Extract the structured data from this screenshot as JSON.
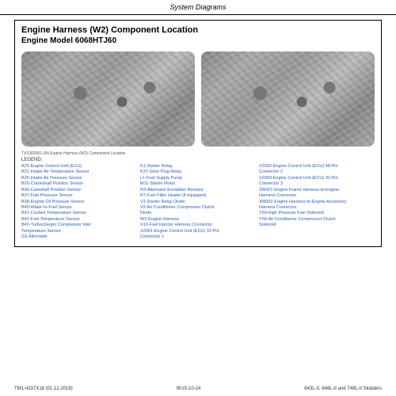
{
  "header": "System Diagrams",
  "title_main": "Engine Harness (W2) Component Location",
  "title_sub": "Engine Model 6068HTJ60",
  "img_caption": "TX1082081-UN Engine Harness (W2) Component Location",
  "legend_label": "LEGEND:",
  "legend": {
    "col1": [
      "A25-Engine Control Unit (ECU)",
      "B22-Intake Air Temperature Sensor",
      "B25-Intake Air Pressure Sensor",
      "B26-Crankshaft Position Sensor",
      "B36-Camshaft Position Sensor",
      "B37-Fuel Pressure Sensor",
      "B38-Engine Oil Pressure Sensor",
      "B40-Water-In-Fuel Sensor",
      "B41-Coolant Temperature Sensor",
      "B42-Fuel Temperature Sensor",
      "B43-Turbocharger Compressor Inlet",
      "Temperature Sensor",
      "G3-Alternator"
    ],
    "col2": [
      "K1-Starter Relay",
      "K37-Glow Plug Relay",
      "L1-Fuel Supply Pump",
      "M11-Starter Motor",
      "R3-Alternator Excitation Resistor",
      "R7-Fuel Filter Heater (if equipped)",
      "V1-Starter Relay Diode",
      "V2-Air Conditioner Compressor Clutch",
      "Diode",
      "W2-Engine Harness",
      "X19-Fuel Injector Harness Connector",
      "X2001-Engine Control Unit (ECU) 32-Pin",
      "Connector 1"
    ],
    "col3": [
      "X2002-Engine Control Unit (ECU) 48-Pin",
      "Connector 2",
      "X2003-Engine Control Unit (ECU) 32-Pin",
      "Connector 3",
      "2W001-Engine Frame Harness-to-Engine",
      "Harness Connector",
      "3W002-Engine Harness-to-Engine Accessory",
      "Harness Connector",
      "Y50-High Pressure Fuel Solenoid",
      "Y68-Air Conditioner Compressor Clutch",
      "Solenoid"
    ]
  },
  "footer": {
    "left": "TM1-4337X18 (01.12.2018)",
    "center": "9015-10-24",
    "right": "643L-II, 648L-II and 748L-II Skidders"
  },
  "colors": {
    "link": "#2a5db0",
    "border": "#000000",
    "bg": "#ffffff"
  }
}
